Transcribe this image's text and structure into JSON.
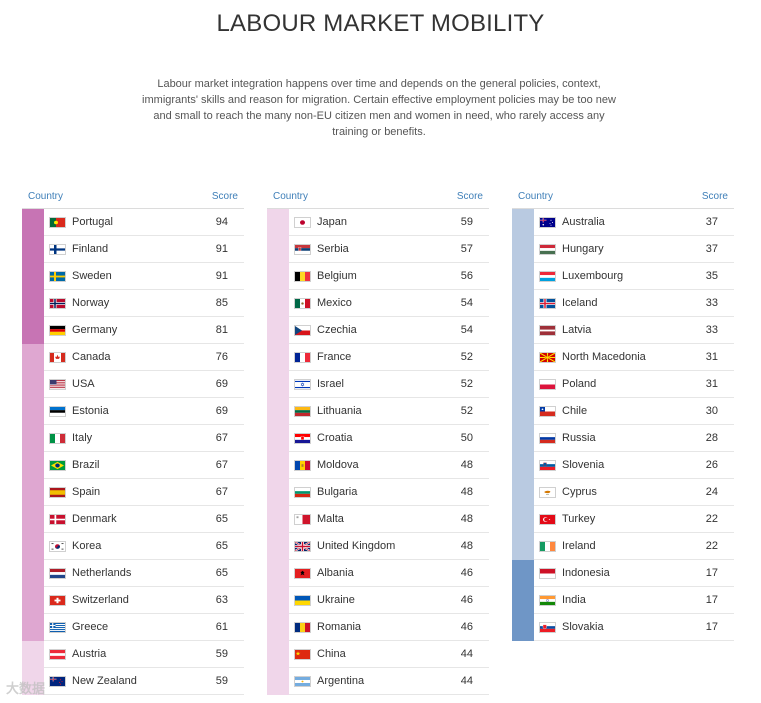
{
  "title": "LABOUR MARKET MOBILITY",
  "intro": "Labour market integration happens over time and depends on the general policies, context, immigrants' skills and reason for migration. Certain effective employment policies may be too new and small to reach the many non-EU citizen men and women in need, who rarely access any training or benefits.",
  "table_headers": {
    "country": "Country",
    "score": "Score"
  },
  "colors": {
    "accent_text": "#3f7fb8",
    "score_80_100": "#c774b4",
    "score_60_79": "#dfa7d1",
    "score_41_59": "#f0d6ea",
    "score_21_40": "#b9cae1",
    "score_0_20": "#6f96c6"
  },
  "columns": [
    {
      "rows": [
        {
          "country": "Portugal",
          "score": 94,
          "flag": "pt-flag"
        },
        {
          "country": "Finland",
          "score": 91,
          "flag": "fi-flag"
        },
        {
          "country": "Sweden",
          "score": 91,
          "flag": "se-flag"
        },
        {
          "country": "Norway",
          "score": 85,
          "flag": "no-flag"
        },
        {
          "country": "Germany",
          "score": 81,
          "flag": "de-flag"
        },
        {
          "country": "Canada",
          "score": 76,
          "flag": "ca-flag"
        },
        {
          "country": "USA",
          "score": 69,
          "flag": "us-flag"
        },
        {
          "country": "Estonia",
          "score": 69,
          "flag": "ee-flag"
        },
        {
          "country": "Italy",
          "score": 67,
          "flag": "it-flag"
        },
        {
          "country": "Brazil",
          "score": 67,
          "flag": "br-flag"
        },
        {
          "country": "Spain",
          "score": 67,
          "flag": "es-flag"
        },
        {
          "country": "Denmark",
          "score": 65,
          "flag": "dk-flag"
        },
        {
          "country": "Korea",
          "score": 65,
          "flag": "kr-flag"
        },
        {
          "country": "Netherlands",
          "score": 65,
          "flag": "nl-flag"
        },
        {
          "country": "Switzerland",
          "score": 63,
          "flag": "ch-flag"
        },
        {
          "country": "Greece",
          "score": 61,
          "flag": "gr-flag"
        },
        {
          "country": "Austria",
          "score": 59,
          "flag": "at-flag"
        },
        {
          "country": "New Zealand",
          "score": 59,
          "flag": "nz-flag"
        }
      ]
    },
    {
      "rows": [
        {
          "country": "Japan",
          "score": 59,
          "flag": "jp-flag"
        },
        {
          "country": "Serbia",
          "score": 57,
          "flag": "rs-flag"
        },
        {
          "country": "Belgium",
          "score": 56,
          "flag": "be-flag"
        },
        {
          "country": "Mexico",
          "score": 54,
          "flag": "mx-flag"
        },
        {
          "country": "Czechia",
          "score": 54,
          "flag": "cz-flag"
        },
        {
          "country": "France",
          "score": 52,
          "flag": "fr-flag"
        },
        {
          "country": "Israel",
          "score": 52,
          "flag": "il-flag"
        },
        {
          "country": "Lithuania",
          "score": 52,
          "flag": "lt-flag"
        },
        {
          "country": "Croatia",
          "score": 50,
          "flag": "hr-flag"
        },
        {
          "country": "Moldova",
          "score": 48,
          "flag": "md-flag"
        },
        {
          "country": "Bulgaria",
          "score": 48,
          "flag": "bg-flag"
        },
        {
          "country": "Malta",
          "score": 48,
          "flag": "mt-flag"
        },
        {
          "country": "United Kingdom",
          "score": 48,
          "flag": "gb-flag"
        },
        {
          "country": "Albania",
          "score": 46,
          "flag": "al-flag"
        },
        {
          "country": "Ukraine",
          "score": 46,
          "flag": "ua-flag"
        },
        {
          "country": "Romania",
          "score": 46,
          "flag": "ro-flag"
        },
        {
          "country": "China",
          "score": 44,
          "flag": "cn-flag"
        },
        {
          "country": "Argentina",
          "score": 44,
          "flag": "ar-flag"
        }
      ]
    },
    {
      "rows": [
        {
          "country": "Australia",
          "score": 37,
          "flag": "au-flag"
        },
        {
          "country": "Hungary",
          "score": 37,
          "flag": "hu-flag"
        },
        {
          "country": "Luxembourg",
          "score": 35,
          "flag": "lu-flag"
        },
        {
          "country": "Iceland",
          "score": 33,
          "flag": "is-flag"
        },
        {
          "country": "Latvia",
          "score": 33,
          "flag": "lv-flag"
        },
        {
          "country": "North Macedonia",
          "score": 31,
          "flag": "mk-flag"
        },
        {
          "country": "Poland",
          "score": 31,
          "flag": "pl-flag"
        },
        {
          "country": "Chile",
          "score": 30,
          "flag": "cl-flag"
        },
        {
          "country": "Russia",
          "score": 28,
          "flag": "ru-flag"
        },
        {
          "country": "Slovenia",
          "score": 26,
          "flag": "si-flag"
        },
        {
          "country": "Cyprus",
          "score": 24,
          "flag": "cy-flag"
        },
        {
          "country": "Turkey",
          "score": 22,
          "flag": "tr-flag"
        },
        {
          "country": "Ireland",
          "score": 22,
          "flag": "ie-flag"
        },
        {
          "country": "Indonesia",
          "score": 17,
          "flag": "id-flag"
        },
        {
          "country": "India",
          "score": 17,
          "flag": "in-flag"
        },
        {
          "country": "Slovakia",
          "score": 17,
          "flag": "sk-flag"
        }
      ]
    }
  ],
  "watermark": "大数据"
}
